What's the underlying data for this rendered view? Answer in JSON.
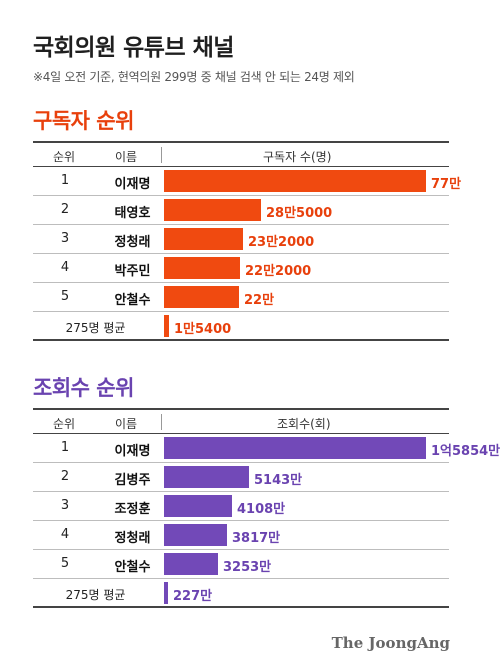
{
  "title": "국회의원 유튜브 채널",
  "subtitle": "※4일 오전 기준, 현역의원 299명 중 채널 검색 안 되는 24명 제외",
  "credit": "The JoongAng",
  "colors": {
    "subscriber_bar": "#f04a10",
    "subscriber_text": "#e8400c",
    "view_bar": "#7249b8",
    "view_text": "#6a43b0"
  },
  "chart_data": [
    {
      "type": "bar",
      "orientation": "horizontal",
      "title": "구독자 순위",
      "headers": {
        "rank": "순위",
        "name": "이름",
        "value": "구독자 수(명)"
      },
      "rows": [
        {
          "rank": "1",
          "name": "이재명",
          "value": 770000,
          "label": "77만"
        },
        {
          "rank": "2",
          "name": "태영호",
          "value": 285000,
          "label": "28만5000"
        },
        {
          "rank": "3",
          "name": "정청래",
          "value": 232000,
          "label": "23만2000"
        },
        {
          "rank": "4",
          "name": "박주민",
          "value": 222000,
          "label": "22만2000"
        },
        {
          "rank": "5",
          "name": "안철수",
          "value": 220000,
          "label": "22만"
        }
      ],
      "average": {
        "label": "275명 평균",
        "value": 15400,
        "text": "1만5400"
      },
      "max_value": 770000
    },
    {
      "type": "bar",
      "orientation": "horizontal",
      "title": "조회수 순위",
      "headers": {
        "rank": "순위",
        "name": "이름",
        "value": "조회수(회)"
      },
      "rows": [
        {
          "rank": "1",
          "name": "이재명",
          "value": 158540000,
          "label": "1억5854만"
        },
        {
          "rank": "2",
          "name": "김병주",
          "value": 51430000,
          "label": "5143만"
        },
        {
          "rank": "3",
          "name": "조정훈",
          "value": 41080000,
          "label": "4108만"
        },
        {
          "rank": "4",
          "name": "정청래",
          "value": 38170000,
          "label": "3817만"
        },
        {
          "rank": "5",
          "name": "안철수",
          "value": 32530000,
          "label": "3253만"
        }
      ],
      "average": {
        "label": "275명 평균",
        "value": 2270000,
        "text": "227만"
      },
      "max_value": 158540000
    }
  ]
}
